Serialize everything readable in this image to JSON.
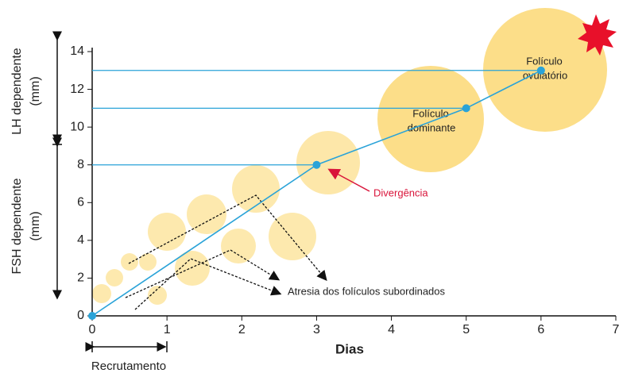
{
  "chart_data": {
    "type": "line",
    "xlabel": "Dias",
    "xlim": [
      0,
      7
    ],
    "xticks": [
      0,
      1,
      2,
      3,
      4,
      5,
      6,
      7
    ],
    "ylim": [
      0,
      14
    ],
    "yticks": [
      0,
      2,
      4,
      6,
      8,
      10,
      12,
      14
    ],
    "series": [
      {
        "color": "#2aa3d8",
        "x": [
          0,
          3,
          5,
          6
        ],
        "values": [
          0,
          8,
          11,
          13
        ]
      }
    ],
    "annotations": {
      "lh_label": [
        "LH dependente",
        "(mm)"
      ],
      "fsh_label": [
        "FSH dependente",
        "(mm)"
      ],
      "ovulatory": [
        "Folículo",
        "ovulatório"
      ],
      "dominant": [
        "Folículo",
        "dominante"
      ],
      "divergence": "Divergência",
      "atresia": "Atresia dos folículos subordinados",
      "recruitment": "Recrutamento"
    }
  }
}
